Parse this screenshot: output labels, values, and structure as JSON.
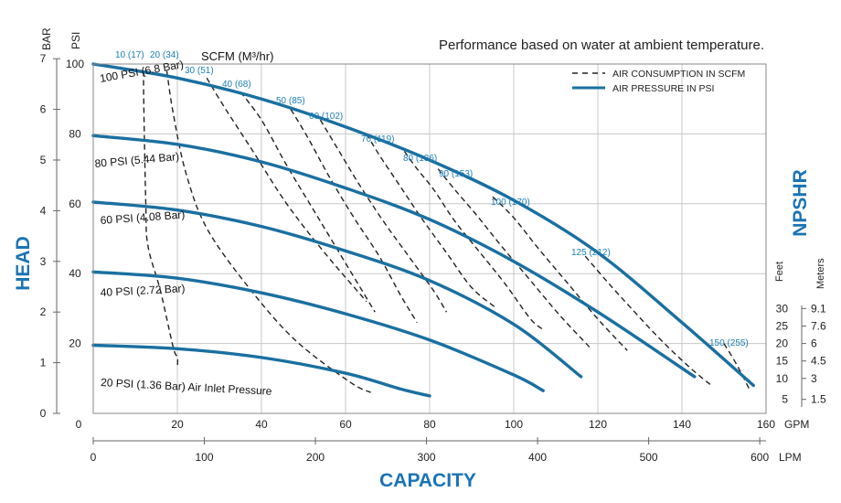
{
  "chart_data": {
    "type": "line",
    "title": "Performance based on water at ambient temperature.",
    "xlabel": "CAPACITY",
    "ylabel": "HEAD",
    "y2label": "NPSHR",
    "x_units_top": "GPM",
    "x_units_bottom": "LPM",
    "y_units_outer": "BAR",
    "y_units_inner": "PSI",
    "xlim": [
      0,
      160
    ],
    "ylim": [
      0,
      100
    ],
    "grid": true,
    "x_ticks_gpm": [
      0,
      20,
      40,
      60,
      80,
      100,
      120,
      140,
      160
    ],
    "x_ticks_lpm": [
      0,
      100,
      200,
      300,
      400,
      500,
      600
    ],
    "y_ticks_psi": [
      20,
      40,
      60,
      80,
      100
    ],
    "y_ticks_bar": [
      0,
      1,
      2,
      3,
      4,
      5,
      6,
      7
    ],
    "legend": {
      "placement": "top-right",
      "entries": [
        {
          "label": "AIR CONSUMPTION IN SCFM",
          "style": "dashed"
        },
        {
          "label": "AIR PRESSURE IN PSI",
          "style": "solid"
        }
      ]
    },
    "scfm_header": "SCFM (M³/hr)",
    "pressure_series": [
      {
        "name": "100 PSI (6.8 Bar)",
        "color": "#1a6fa0",
        "x": [
          0,
          20,
          40,
          60,
          80,
          100,
          120,
          140,
          157
        ],
        "y": [
          100,
          96,
          90,
          82,
          72.5,
          61,
          46,
          26,
          8
        ]
      },
      {
        "name": "80 PSI (5.44 Bar)",
        "color": "#1a6fa0",
        "x": [
          0,
          20,
          40,
          60,
          80,
          100,
          120,
          143
        ],
        "y": [
          79.5,
          77,
          72,
          64.5,
          55.5,
          43.5,
          29,
          10.5
        ]
      },
      {
        "name": "60 PSI (4.08 Bar)",
        "color": "#1a6fa0",
        "x": [
          0,
          20,
          40,
          60,
          80,
          100,
          116
        ],
        "y": [
          60.5,
          58.2,
          53.5,
          46.5,
          38,
          25.5,
          10.5
        ]
      },
      {
        "name": "40 PSI (2.72 Bar)",
        "color": "#1a6fa0",
        "x": [
          0,
          20,
          40,
          60,
          80,
          100,
          107
        ],
        "y": [
          40.5,
          38.7,
          34.5,
          28.5,
          21,
          11,
          6.5
        ]
      },
      {
        "name": "20 PSI (1.36 Bar) Air Inlet Pressure",
        "color": "#1a6fa0",
        "x": [
          0,
          20,
          40,
          60,
          73,
          80
        ],
        "y": [
          19.5,
          18.5,
          16,
          11.5,
          7,
          5
        ]
      }
    ],
    "scfm_labels": [
      "10 (17)",
      "20 (34)",
      "30 (51)",
      "40 (68)",
      "50 (85)",
      "60 (102)",
      "70 (119)",
      "80 (136)",
      "90 (153)",
      "100 (170)",
      "125 (212)",
      "150 (255)"
    ],
    "scfm_series": [
      {
        "label": "10 (17)",
        "x": [
          12,
          12,
          12.5,
          13,
          16,
          19,
          20,
          20
        ],
        "y": [
          98,
          90,
          60,
          48,
          35,
          19,
          16,
          13
        ]
      },
      {
        "label": "20 (34)",
        "x": [
          17.5,
          19,
          22,
          27,
          37,
          48,
          61,
          66
        ],
        "y": [
          98,
          86,
          69,
          53,
          36,
          21,
          9,
          6
        ]
      },
      {
        "label": "30 (51)",
        "x": [
          27,
          31,
          38,
          46,
          55,
          65
        ],
        "y": [
          96,
          88,
          75,
          60,
          46,
          32
        ]
      },
      {
        "label": "40 (68)",
        "x": [
          35,
          40,
          46,
          53,
          60,
          67
        ],
        "y": [
          92,
          84,
          71,
          57,
          43,
          29
        ]
      },
      {
        "label": "50 (85)",
        "x": [
          47,
          51,
          56,
          62,
          68,
          73,
          77
        ],
        "y": [
          87,
          79,
          68,
          56,
          45,
          34,
          26
        ]
      },
      {
        "label": "60 (102)",
        "x": [
          54,
          58,
          63,
          69,
          75,
          81,
          84
        ],
        "y": [
          84,
          76,
          66,
          55,
          45,
          35,
          29
        ]
      },
      {
        "label": "70 (119)",
        "x": [
          65,
          68,
          73,
          78,
          84,
          90,
          96
        ],
        "y": [
          80,
          74,
          65,
          56,
          46,
          36,
          30
        ]
      },
      {
        "label": "80 (136)",
        "x": [
          74,
          77,
          81,
          86,
          92,
          98,
          104,
          107
        ],
        "y": [
          75,
          70,
          64,
          55,
          46,
          37,
          27,
          24
        ]
      },
      {
        "label": "90 (153)",
        "x": [
          82,
          86,
          91,
          97,
          104,
          111,
          118
        ],
        "y": [
          70,
          64,
          57,
          48,
          38,
          28,
          19
        ]
      },
      {
        "label": "100 (170)",
        "x": [
          95,
          100,
          106,
          113,
          120,
          127
        ],
        "y": [
          62,
          56,
          47,
          37,
          27,
          18
        ]
      },
      {
        "label": "125 (212)",
        "x": [
          117,
          122,
          128,
          135,
          142,
          147
        ],
        "y": [
          45,
          38,
          30,
          21,
          13,
          8
        ]
      },
      {
        "label": "150 (255)",
        "x": [
          150,
          153,
          156
        ],
        "y": [
          20,
          14,
          7
        ]
      }
    ],
    "npshr_scale": {
      "feet_label": "Feet",
      "meters_label": "Meters",
      "rows": [
        {
          "feet": "30",
          "meters": "9.1",
          "psi_level": 30
        },
        {
          "feet": "25",
          "meters": "7.6",
          "psi_level": 25
        },
        {
          "feet": "20",
          "meters": "6",
          "psi_level": 20
        },
        {
          "feet": "15",
          "meters": "4.5",
          "psi_level": 15
        },
        {
          "feet": "10",
          "meters": "3",
          "psi_level": 10
        },
        {
          "feet": "5",
          "meters": "1.5",
          "psi_level": 4
        }
      ]
    }
  }
}
